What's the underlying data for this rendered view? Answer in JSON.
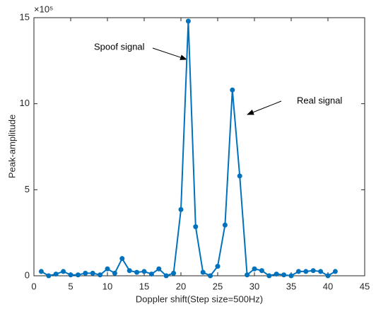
{
  "chart_data": {
    "type": "line",
    "x_label": "Doppler shift(Step size=500Hz)",
    "y_label": "Peak-amplitude",
    "y_multiplier": "×10⁵",
    "annotations": [
      "Spoof signal",
      "Real signal"
    ],
    "x": [
      1,
      2,
      3,
      4,
      5,
      6,
      7,
      8,
      9,
      10,
      11,
      12,
      13,
      14,
      15,
      16,
      17,
      18,
      19,
      20,
      21,
      22,
      23,
      24,
      25,
      26,
      27,
      28,
      29,
      30,
      31,
      32,
      33,
      34,
      35,
      36,
      37,
      38,
      39,
      40,
      41
    ],
    "series": [
      {
        "color": "#0072bd",
        "values": [
          0.25,
          0.0,
          0.1,
          0.25,
          0.05,
          0.05,
          0.15,
          0.15,
          0.05,
          0.4,
          0.15,
          1.0,
          0.3,
          0.2,
          0.25,
          0.1,
          0.4,
          0.0,
          0.15,
          3.85,
          14.8,
          2.85,
          0.2,
          0.0,
          0.55,
          2.95,
          10.8,
          5.8,
          0.05,
          0.4,
          0.3,
          0.0,
          0.1,
          0.05,
          0.0,
          0.25,
          0.25,
          0.3,
          0.25,
          0.0,
          0.25
        ]
      }
    ],
    "xlim": [
      0,
      45
    ],
    "xticks": [
      0,
      5,
      10,
      15,
      20,
      25,
      30,
      35,
      40,
      45
    ],
    "ylim": [
      0,
      15
    ],
    "yticks": [
      0,
      5,
      10,
      15
    ]
  }
}
